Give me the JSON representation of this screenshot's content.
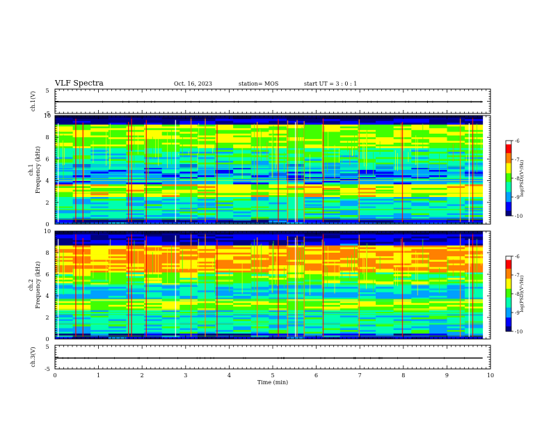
{
  "header": {
    "title": "VLF Spectra",
    "date": "Oct. 16, 2023",
    "station": "station= MOS",
    "start": "start  UT =   3 : 0  : 1"
  },
  "chart_data": [
    {
      "type": "line",
      "name": "ch1_waveform",
      "ylabel": "ch.1(V)",
      "ylim": [
        -5,
        5
      ],
      "y_ticks": [
        "5",
        "-5"
      ],
      "x": [
        0,
        9.82
      ],
      "y": [
        -0.2,
        -0.2
      ],
      "xlim": [
        0,
        10
      ]
    },
    {
      "type": "heatmap",
      "name": "ch1_spectrogram",
      "ylabel_1": "ch.1",
      "ylabel_2": "Frequency (kHz)",
      "ylim": [
        0,
        10
      ],
      "y_ticks": [
        "0",
        "2",
        "4",
        "6",
        "8",
        "10"
      ],
      "xlim": [
        0,
        10
      ],
      "data_xlim": [
        0,
        9.82
      ],
      "bands_khz": [
        {
          "from": 0,
          "to": 0.5,
          "level": 0.1
        },
        {
          "from": 0.5,
          "to": 2.5,
          "level": 0.35
        },
        {
          "from": 2.5,
          "to": 3.6,
          "level": 0.6
        },
        {
          "from": 3.6,
          "to": 5.5,
          "level": 0.25
        },
        {
          "from": 5.5,
          "to": 7.0,
          "level": 0.4
        },
        {
          "from": 7.0,
          "to": 9.2,
          "level": 0.55
        },
        {
          "from": 9.2,
          "to": 10,
          "level": 0.05
        }
      ],
      "colorbar": {
        "label": "log(PSD)(V²/Hz)",
        "range": [
          -10,
          -6
        ],
        "ticks": [
          "-6",
          "-7",
          "-8",
          "-9",
          "-10"
        ],
        "colors": [
          "#000080",
          "#0000ff",
          "#00a0ff",
          "#00ffb0",
          "#40ff00",
          "#ffff00",
          "#ff8000",
          "#ff0000",
          "#ffffff"
        ]
      }
    },
    {
      "type": "heatmap",
      "name": "ch2_spectrogram",
      "ylabel_1": "ch.2",
      "ylabel_2": "Frequency (kHz)",
      "ylim": [
        0,
        10
      ],
      "y_ticks": [
        "0",
        "2",
        "4",
        "6",
        "8",
        "10"
      ],
      "xlim": [
        0,
        10
      ],
      "data_xlim": [
        0,
        9.82
      ],
      "bands_khz": [
        {
          "from": 0,
          "to": 0.5,
          "level": 0.1
        },
        {
          "from": 0.5,
          "to": 2.6,
          "level": 0.35
        },
        {
          "from": 2.6,
          "to": 3.6,
          "level": 0.55
        },
        {
          "from": 3.6,
          "to": 5.0,
          "level": 0.3
        },
        {
          "from": 5.0,
          "to": 6.2,
          "level": 0.5
        },
        {
          "from": 6.2,
          "to": 8.6,
          "level": 0.7
        },
        {
          "from": 8.6,
          "to": 10,
          "level": 0.08
        }
      ],
      "colorbar": {
        "label": "log(PSD)(V²/Hz)",
        "range": [
          -10,
          -6
        ],
        "ticks": [
          "-6",
          "-7",
          "-8",
          "-9",
          "-10"
        ],
        "colors": [
          "#000080",
          "#0000ff",
          "#00a0ff",
          "#00ffb0",
          "#40ff00",
          "#ffff00",
          "#ff8000",
          "#ff0000",
          "#ffffff"
        ]
      }
    },
    {
      "type": "line",
      "name": "ch3_waveform",
      "ylabel": "ch.3(V)",
      "ylim": [
        -5,
        5
      ],
      "y_ticks": [
        "5",
        "-5"
      ],
      "x": [
        0,
        9.82
      ],
      "y": [
        -0.4,
        -0.4
      ],
      "xlim": [
        0,
        10
      ],
      "xlabel": "Time  (min)",
      "x_ticks": [
        "0",
        "1",
        "2",
        "3",
        "4",
        "5",
        "6",
        "7",
        "8",
        "9",
        "10"
      ]
    }
  ]
}
